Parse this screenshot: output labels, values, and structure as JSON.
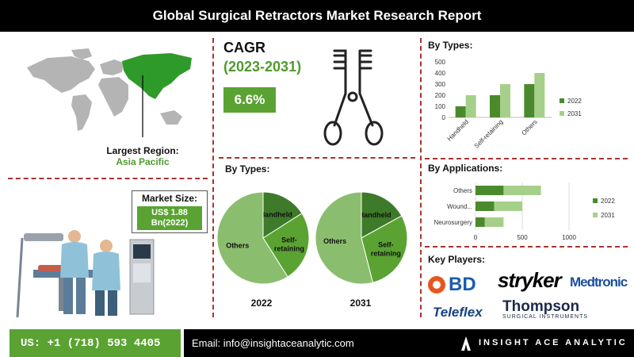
{
  "title": "Global Surgical Retractors Market Research Report",
  "region": {
    "label": "Largest Region:",
    "value": "Asia Pacific"
  },
  "market_size": {
    "label": "Market Size:",
    "line1": "US$ 1.88",
    "line2": "Bn(2022)"
  },
  "cagr": {
    "label": "CAGR",
    "period": "(2023-2031)",
    "value": "6.6%"
  },
  "types_pies": {
    "heading": "By Types:",
    "pies": [
      {
        "year": "2022",
        "slices": [
          {
            "name": "Handheld",
            "value": 16
          },
          {
            "name": "Self-retaining",
            "value": 25
          },
          {
            "name": "Others",
            "value": 59
          }
        ]
      },
      {
        "year": "2031",
        "slices": [
          {
            "name": "Handheld",
            "value": 17
          },
          {
            "name": "Self-retaining",
            "value": 29
          },
          {
            "name": "Others",
            "value": 54
          }
        ]
      }
    ],
    "colors": [
      "#3d7a2a",
      "#5aa332",
      "#8bbd6e"
    ]
  },
  "chart_data": [
    {
      "type": "bar",
      "title": "By Types:",
      "categories": [
        "Handheld",
        "Self-retaining",
        "Others"
      ],
      "series": [
        {
          "name": "2022",
          "values": [
            100,
            200,
            300
          ],
          "color": "#4a8a2c"
        },
        {
          "name": "2031",
          "values": [
            200,
            300,
            400
          ],
          "color": "#a6d08a"
        }
      ],
      "ylim": [
        0,
        500
      ],
      "yticks": [
        0,
        100,
        200,
        300,
        400,
        500
      ],
      "legend": "right"
    },
    {
      "type": "bar",
      "orientation": "horizontal",
      "stacked": true,
      "title": "By Applications:",
      "categories": [
        "Others",
        "Wound...",
        "Neurosurgery"
      ],
      "series": [
        {
          "name": "2022",
          "values": [
            300,
            200,
            100
          ],
          "color": "#4a8a2c"
        },
        {
          "name": "2031",
          "values": [
            400,
            300,
            200
          ],
          "color": "#a6d08a"
        }
      ],
      "xlim": [
        0,
        1000
      ],
      "xticks": [
        0,
        500,
        1000
      ],
      "legend": "right"
    }
  ],
  "key_players": {
    "heading": "Key Players:",
    "items": [
      "BD",
      "stryker",
      "Medtronic",
      "Teleflex",
      "Thompson",
      "SURGICAL INSTRUMENTS"
    ]
  },
  "footer": {
    "phone": "US: +1 (718) 593 4405",
    "email": "Email: info@insightaceanalytic.com",
    "brand": "INSIGHT ACE ANALYTIC"
  }
}
